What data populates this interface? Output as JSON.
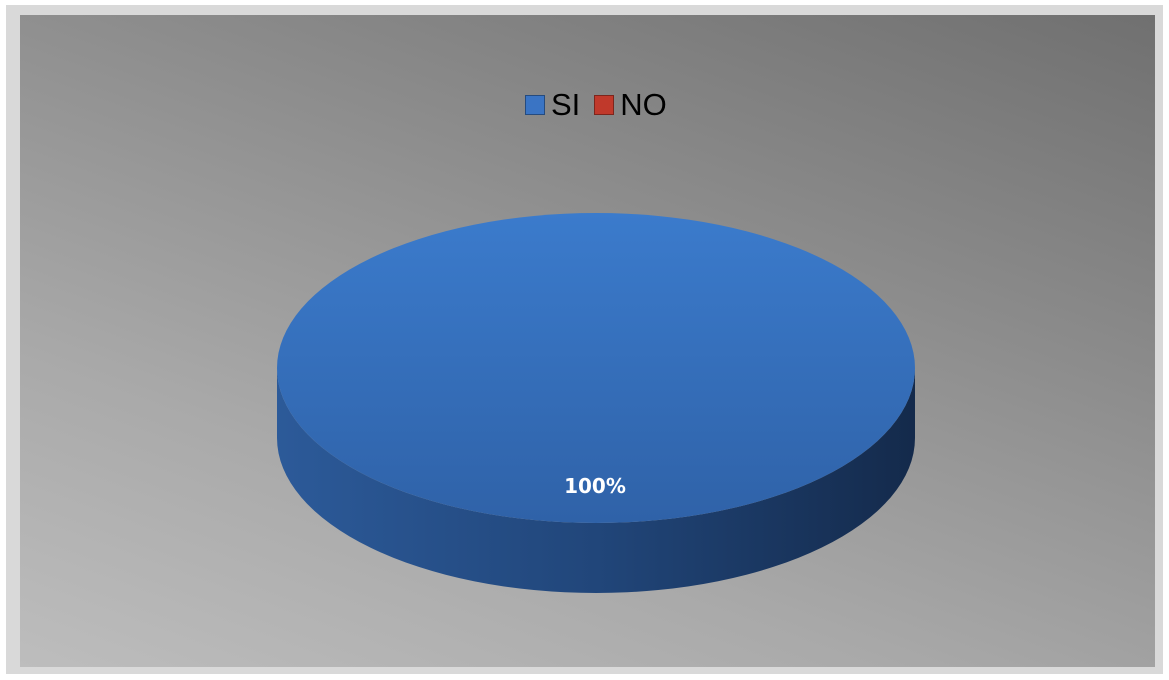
{
  "chart_data": {
    "type": "pie",
    "title": "",
    "legend_position": "top",
    "categories": [
      "SI",
      "NO"
    ],
    "values": [
      100,
      0
    ],
    "colors": [
      "#3a74c4",
      "#c0392b"
    ],
    "data_labels": [
      "100%"
    ],
    "style": "3d"
  }
}
